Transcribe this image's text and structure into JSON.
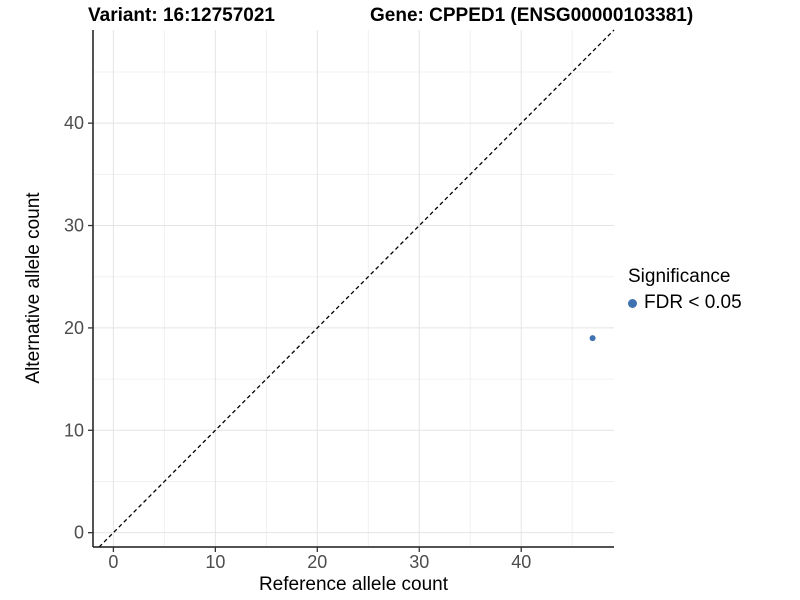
{
  "chart_data": {
    "type": "scatter",
    "title_left": "Variant: 16:12757021",
    "title_right": "Gene: CPPED1 (ENSG00000103381)",
    "xlabel": "Reference allele count",
    "ylabel": "Alternative allele count",
    "xlim": [
      -2,
      49.1
    ],
    "ylim": [
      -1.4,
      49.1
    ],
    "x_major_ticks": [
      0,
      10,
      20,
      30,
      40
    ],
    "y_major_ticks": [
      0,
      10,
      20,
      30,
      40
    ],
    "x_minor_gridlines": [
      5,
      15,
      25,
      35,
      45
    ],
    "y_minor_gridlines": [
      5,
      15,
      25,
      35,
      45
    ],
    "grid": "major+minor",
    "series": [
      {
        "name": "FDR < 0.05",
        "color": "#3E72B0",
        "points": [
          {
            "x": 47,
            "y": 19
          }
        ]
      }
    ],
    "reference_line": {
      "kind": "identity",
      "slope": 1,
      "intercept": 0,
      "linetype": "dashed",
      "color": "#000000"
    },
    "legend": {
      "title": "Significance",
      "position": "right",
      "entries": [
        {
          "label": "FDR < 0.05",
          "color": "#3E72B0",
          "marker": "circle"
        }
      ]
    },
    "style": {
      "background": "#FFFFFF",
      "grid_major_color": "#E4E4E4",
      "grid_minor_color": "#F0F0F0",
      "axis_line_color": "#1A1A1A",
      "tick_color": "#333333",
      "tick_label_color": "#4D4D4D",
      "title_color": "#000000",
      "point_radius_px": 3,
      "legend_marker_radius_px": 4.5
    }
  }
}
